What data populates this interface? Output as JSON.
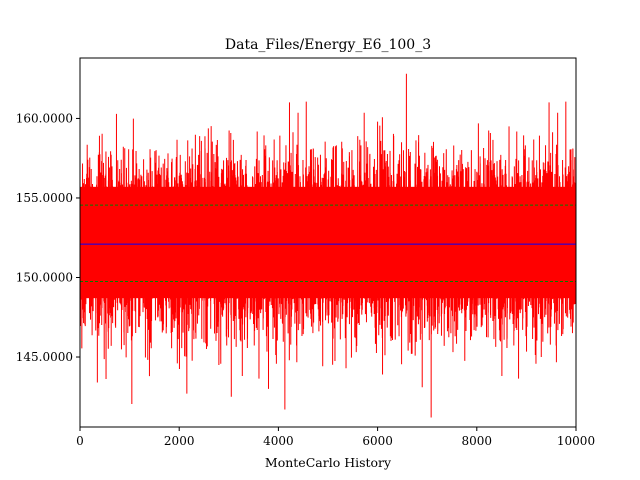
{
  "chart_data": {
    "type": "line",
    "title": "Data_Files/Energy_E6_100_3",
    "xlabel": "MonteCarlo History",
    "ylabel": "",
    "xlim": [
      0,
      10000
    ],
    "ylim": [
      140.6,
      163.8
    ],
    "x_ticks": [
      {
        "value": 0,
        "label": "0"
      },
      {
        "value": 2000,
        "label": "2000"
      },
      {
        "value": 4000,
        "label": "4000"
      },
      {
        "value": 6000,
        "label": "6000"
      },
      {
        "value": 8000,
        "label": "8000"
      },
      {
        "value": 10000,
        "label": "10000"
      }
    ],
    "y_ticks": [
      {
        "value": 145,
        "label": "145.0000"
      },
      {
        "value": 150,
        "label": "150.0000"
      },
      {
        "value": 155,
        "label": "155.0000"
      },
      {
        "value": 160,
        "label": "160.0000"
      }
    ],
    "grid": false,
    "legend": "none",
    "series": [
      {
        "color": "#ff0000",
        "n_points": 10000,
        "mean": 152.1,
        "typical_band": [
          147.2,
          157.2
        ],
        "x": [
          0,
          1000,
          1400,
          2000,
          2800,
          3050,
          3800,
          4130,
          4220,
          5800,
          6000,
          6100,
          6900,
          7080,
          8000,
          8650,
          9300,
          10000
        ],
        "y": [
          152.3,
          155.8,
          143.8,
          156.4,
          144.5,
          142.5,
          143.0,
          141.7,
          144.8,
          158.2,
          159.8,
          143.9,
          143.1,
          141.2,
          156.5,
          159.5,
          145.0,
          152.0
        ]
      },
      {
        "color": "#0000ff",
        "role": "mean",
        "value": 152.1
      },
      {
        "color": "#008000",
        "role": "mean + std",
        "value": 154.55,
        "style": "dashed"
      },
      {
        "color": "#008000",
        "role": "mean - std",
        "value": 149.75,
        "style": "dashed"
      }
    ]
  }
}
